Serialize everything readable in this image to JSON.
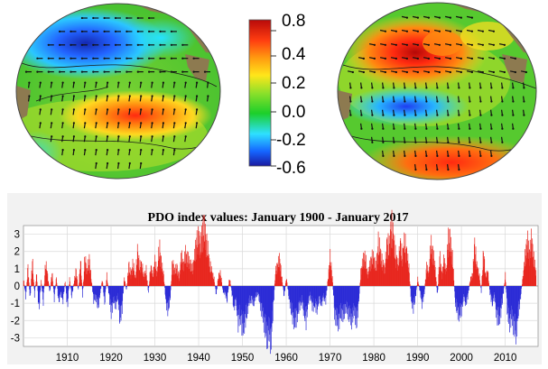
{
  "colorbar": {
    "ticks": [
      "0.8",
      "0.4",
      "0.2",
      "0.0",
      "-0.2",
      "-0.6"
    ],
    "colors": [
      "#1a1aa0",
      "#1565ff",
      "#2ee0ff",
      "#1ccf2a",
      "#8ee02a",
      "#ffe61a",
      "#ff9a10",
      "#ff3d10",
      "#b80a0a"
    ]
  },
  "maps": {
    "left": {
      "phase": "negative"
    },
    "right": {
      "phase": "positive"
    }
  },
  "chart_data": {
    "type": "bar",
    "title": "PDO index values: January 1900 - January 2017",
    "xlabel": "",
    "ylabel": "",
    "xlim": [
      1900,
      2017.5
    ],
    "ylim": [
      -3.5,
      3.5
    ],
    "x_ticks": [
      1910,
      1920,
      1930,
      1940,
      1950,
      1960,
      1970,
      1980,
      1990,
      2000,
      2010
    ],
    "y_ticks": [
      3,
      2,
      1,
      0,
      -1,
      -2,
      -3
    ],
    "grid": true,
    "colors": {
      "positive": "#e8261e",
      "negative": "#2b2bd6"
    },
    "series": [
      {
        "values_note_absent": true,
        "points": [
          [
            1900,
            0.4
          ],
          [
            1900.5,
            -0.6
          ],
          [
            1901,
            1.1
          ],
          [
            1901.5,
            -0.8
          ],
          [
            1902,
            1.5
          ],
          [
            1902.5,
            -0.5
          ],
          [
            1903,
            0.7
          ],
          [
            1903.5,
            -1.4
          ],
          [
            1904,
            0.3
          ],
          [
            1904.5,
            -0.9
          ],
          [
            1905,
            1.3
          ],
          [
            1905.5,
            0.6
          ],
          [
            1906,
            -0.4
          ],
          [
            1906.5,
            0.8
          ],
          [
            1907,
            -0.7
          ],
          [
            1907.5,
            0.5
          ],
          [
            1908,
            -0.9
          ],
          [
            1908.5,
            -0.4
          ],
          [
            1909,
            -0.8
          ],
          [
            1909.5,
            0.3
          ],
          [
            1910,
            -1.2
          ],
          [
            1910.5,
            0.4
          ],
          [
            1911,
            -0.6
          ],
          [
            1911.5,
            0.2
          ],
          [
            1912,
            0.9
          ],
          [
            1912.5,
            -0.3
          ],
          [
            1913,
            1.4
          ],
          [
            1913.5,
            -0.5
          ],
          [
            1914,
            1.6
          ],
          [
            1914.5,
            0.8
          ],
          [
            1915,
            1.5
          ],
          [
            1915.5,
            0.3
          ],
          [
            1916,
            -0.8
          ],
          [
            1916.5,
            -0.6
          ],
          [
            1917,
            -1.2
          ],
          [
            1917.5,
            -0.4
          ],
          [
            1918,
            0.4
          ],
          [
            1918.5,
            -1.0
          ],
          [
            1919,
            0.6
          ],
          [
            1919.5,
            -0.5
          ],
          [
            1920,
            -1.5
          ],
          [
            1920.5,
            -0.8
          ],
          [
            1921,
            -1.1
          ],
          [
            1921.5,
            -0.6
          ],
          [
            1922,
            -1.9
          ],
          [
            1922.5,
            -1.2
          ],
          [
            1923,
            0.5
          ],
          [
            1923.5,
            -0.3
          ],
          [
            1924,
            1.2
          ],
          [
            1924.5,
            0.6
          ],
          [
            1925,
            1.3
          ],
          [
            1925.5,
            0.4
          ],
          [
            1926,
            1.9
          ],
          [
            1926.5,
            1.1
          ],
          [
            1927,
            1.2
          ],
          [
            1927.5,
            0.5
          ],
          [
            1928,
            0.9
          ],
          [
            1928.5,
            -0.4
          ],
          [
            1929,
            1.1
          ],
          [
            1929.5,
            0.6
          ],
          [
            1930,
            1.4
          ],
          [
            1930.5,
            0.7
          ],
          [
            1931,
            2.2
          ],
          [
            1931.5,
            1.2
          ],
          [
            1932,
            0.6
          ],
          [
            1932.5,
            -0.9
          ],
          [
            1933,
            -1.4
          ],
          [
            1933.5,
            -0.6
          ],
          [
            1934,
            1.4
          ],
          [
            1934.5,
            0.8
          ],
          [
            1935,
            1.1
          ],
          [
            1935.5,
            0.4
          ],
          [
            1936,
            1.7
          ],
          [
            1936.5,
            1.2
          ],
          [
            1937,
            1.8
          ],
          [
            1937.5,
            1.5
          ],
          [
            1938,
            1.3
          ],
          [
            1938.5,
            0.9
          ],
          [
            1939,
            1.6
          ],
          [
            1939.5,
            2.5
          ],
          [
            1940,
            2.6
          ],
          [
            1940.5,
            2.3
          ],
          [
            1941,
            3.3
          ],
          [
            1941.5,
            2.8
          ],
          [
            1942,
            2.1
          ],
          [
            1942.5,
            1.2
          ],
          [
            1943,
            0.8
          ],
          [
            1943.5,
            0.4
          ],
          [
            1944,
            -0.5
          ],
          [
            1944.5,
            0.6
          ],
          [
            1945,
            0.7
          ],
          [
            1945.5,
            -0.3
          ],
          [
            1946,
            -0.4
          ],
          [
            1946.5,
            -0.8
          ],
          [
            1947,
            0.5
          ],
          [
            1947.5,
            -0.3
          ],
          [
            1948,
            -1.2
          ],
          [
            1948.5,
            -0.8
          ],
          [
            1949,
            -2.0
          ],
          [
            1949.5,
            -1.6
          ],
          [
            1950,
            -2.4
          ],
          [
            1950.5,
            -2.0
          ],
          [
            1951,
            -1.5
          ],
          [
            1951.5,
            -0.9
          ],
          [
            1952,
            -0.7
          ],
          [
            1952.5,
            -1.0
          ],
          [
            1953,
            -0.6
          ],
          [
            1953.5,
            -0.4
          ],
          [
            1954,
            -1.0
          ],
          [
            1954.5,
            -1.5
          ],
          [
            1955,
            -2.1
          ],
          [
            1955.5,
            -2.8
          ],
          [
            1956,
            -2.6
          ],
          [
            1956.5,
            -3.1
          ],
          [
            1957,
            -1.3
          ],
          [
            1957.5,
            0.8
          ],
          [
            1958,
            1.2
          ],
          [
            1958.5,
            1.5
          ],
          [
            1959,
            0.4
          ],
          [
            1959.5,
            -0.6
          ],
          [
            1960,
            0.5
          ],
          [
            1960.5,
            -0.5
          ],
          [
            1961,
            -1.2
          ],
          [
            1961.5,
            -1.8
          ],
          [
            1962,
            -2.0
          ],
          [
            1962.5,
            -1.6
          ],
          [
            1963,
            -1.1
          ],
          [
            1963.5,
            -0.8
          ],
          [
            1964,
            -1.4
          ],
          [
            1964.5,
            -1.9
          ],
          [
            1965,
            -0.9
          ],
          [
            1965.5,
            -0.5
          ],
          [
            1966,
            -1.2
          ],
          [
            1966.5,
            -1.0
          ],
          [
            1967,
            -1.3
          ],
          [
            1967.5,
            -0.7
          ],
          [
            1968,
            -1.0
          ],
          [
            1968.5,
            -0.6
          ],
          [
            1969,
            -0.8
          ],
          [
            1969.5,
            0.4
          ],
          [
            1970,
            1.6
          ],
          [
            1970.5,
            0.5
          ],
          [
            1971,
            -1.5
          ],
          [
            1971.5,
            -1.9
          ],
          [
            1972,
            -2.0
          ],
          [
            1972.5,
            -1.4
          ],
          [
            1973,
            -1.7
          ],
          [
            1973.5,
            -1.2
          ],
          [
            1974,
            -1.4
          ],
          [
            1974.5,
            -1.7
          ],
          [
            1975,
            -1.9
          ],
          [
            1975.5,
            -1.3
          ],
          [
            1976,
            -2.1
          ],
          [
            1976.5,
            -1.0
          ],
          [
            1977,
            0.8
          ],
          [
            1977.5,
            1.4
          ],
          [
            1978,
            1.7
          ],
          [
            1978.5,
            0.6
          ],
          [
            1979,
            1.1
          ],
          [
            1979.5,
            1.6
          ],
          [
            1980,
            1.5
          ],
          [
            1980.5,
            1.0
          ],
          [
            1981,
            2.4
          ],
          [
            1981.5,
            1.8
          ],
          [
            1982,
            1.2
          ],
          [
            1982.5,
            1.0
          ],
          [
            1983,
            2.4
          ],
          [
            1983.5,
            2.2
          ],
          [
            1984,
            3.4
          ],
          [
            1984.5,
            2.6
          ],
          [
            1985,
            1.6
          ],
          [
            1985.5,
            1.2
          ],
          [
            1986,
            2.3
          ],
          [
            1986.5,
            1.6
          ],
          [
            1987,
            2.5
          ],
          [
            1987.5,
            1.8
          ],
          [
            1988,
            1.0
          ],
          [
            1988.5,
            -0.8
          ],
          [
            1989,
            -1.2
          ],
          [
            1989.5,
            -0.6
          ],
          [
            1990,
            0.4
          ],
          [
            1990.5,
            -0.3
          ],
          [
            1991,
            -1.0
          ],
          [
            1991.5,
            -0.4
          ],
          [
            1992,
            1.1
          ],
          [
            1992.5,
            0.7
          ],
          [
            1993,
            2.3
          ],
          [
            1993.5,
            1.8
          ],
          [
            1994,
            1.0
          ],
          [
            1994.5,
            -0.6
          ],
          [
            1995,
            1.7
          ],
          [
            1995.5,
            0.6
          ],
          [
            1996,
            1.5
          ],
          [
            1996.5,
            0.8
          ],
          [
            1997,
            2.8
          ],
          [
            1997.5,
            2.3
          ],
          [
            1998,
            1.5
          ],
          [
            1998.5,
            -0.8
          ],
          [
            1999,
            -1.4
          ],
          [
            1999.5,
            -1.6
          ],
          [
            2000,
            -1.3
          ],
          [
            2000.5,
            -0.6
          ],
          [
            2001,
            -1.0
          ],
          [
            2001.5,
            -0.5
          ],
          [
            2002,
            0.4
          ],
          [
            2002.5,
            0.6
          ],
          [
            2003,
            2.3
          ],
          [
            2003.5,
            1.1
          ],
          [
            2004,
            0.7
          ],
          [
            2004.5,
            -0.3
          ],
          [
            2005,
            1.9
          ],
          [
            2005.5,
            0.6
          ],
          [
            2006,
            0.8
          ],
          [
            2006.5,
            -0.4
          ],
          [
            2007,
            -1.0
          ],
          [
            2007.5,
            -0.5
          ],
          [
            2008,
            -1.6
          ],
          [
            2008.5,
            -1.9
          ],
          [
            2009,
            -1.4
          ],
          [
            2009.5,
            -0.5
          ],
          [
            2010,
            0.6
          ],
          [
            2010.5,
            -1.6
          ],
          [
            2011,
            -2.0
          ],
          [
            2011.5,
            -1.7
          ],
          [
            2012,
            -2.3
          ],
          [
            2012.5,
            -2.6
          ],
          [
            2013,
            -1.4
          ],
          [
            2013.5,
            -0.6
          ],
          [
            2014,
            0.5
          ],
          [
            2014.5,
            1.6
          ],
          [
            2015,
            2.5
          ],
          [
            2015.5,
            1.8
          ],
          [
            2016,
            2.6
          ],
          [
            2016.5,
            1.5
          ],
          [
            2017,
            0.8
          ]
        ]
      }
    ]
  }
}
